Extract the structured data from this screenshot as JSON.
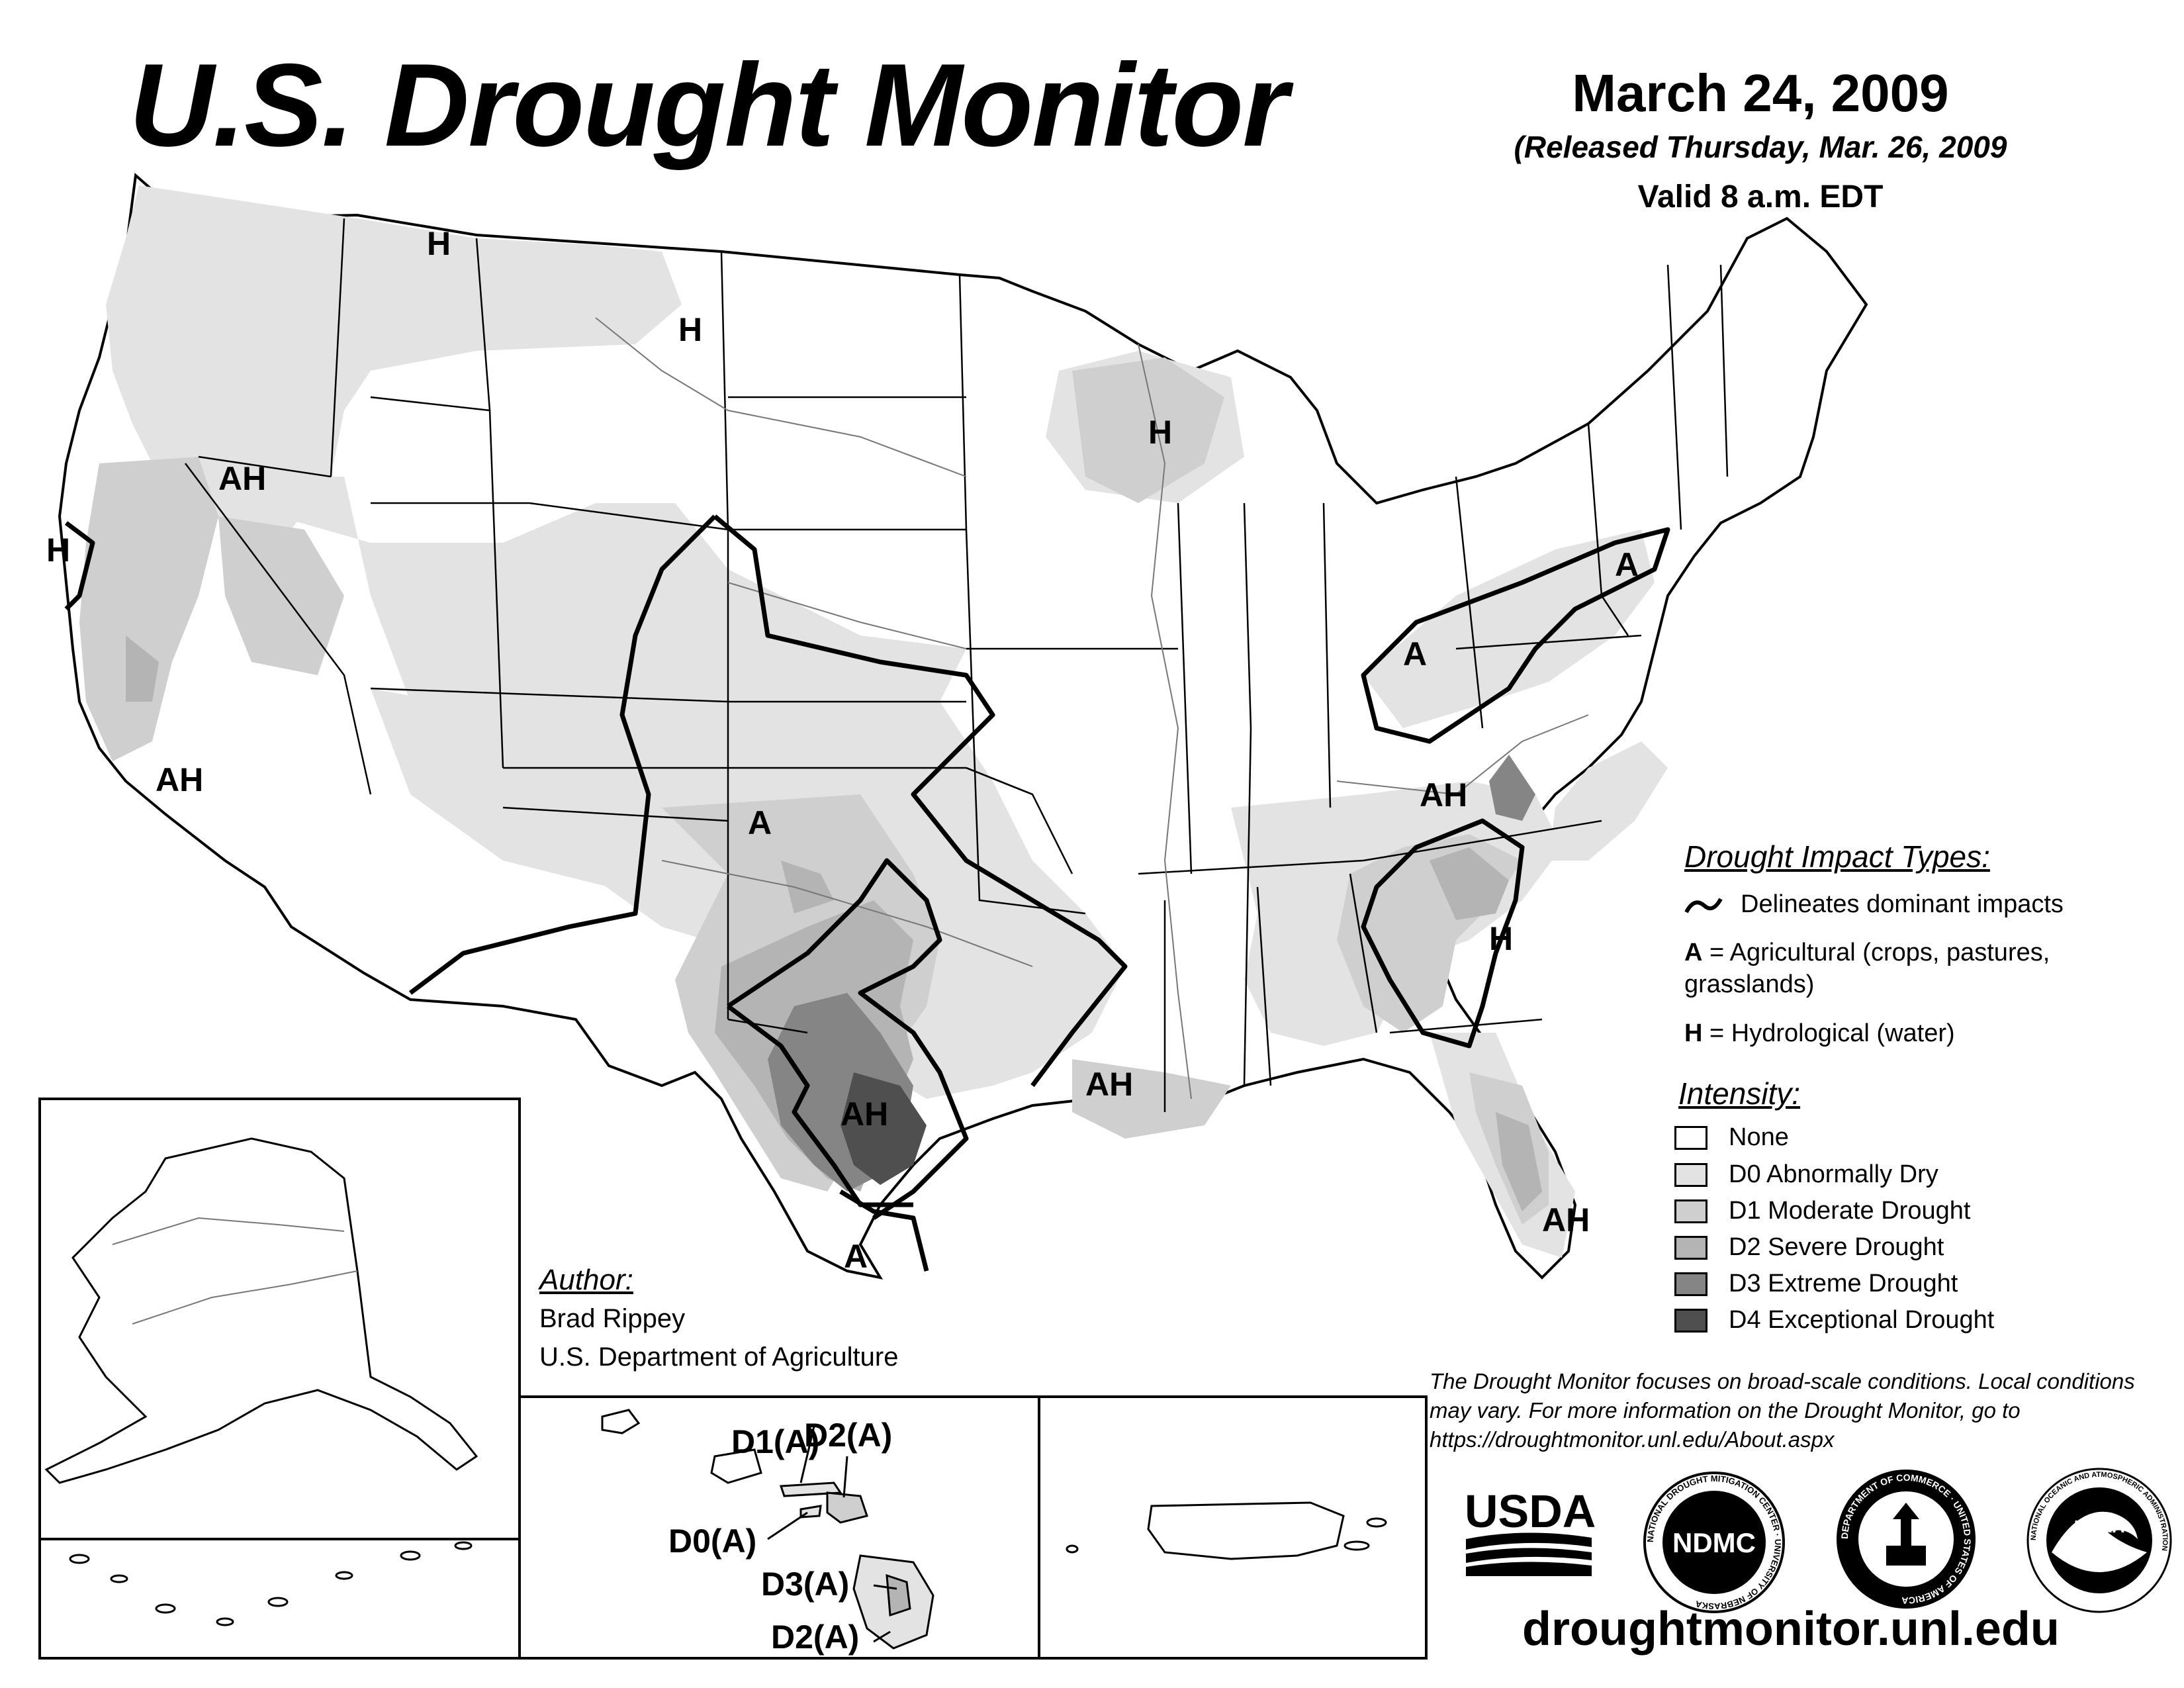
{
  "title": "U.S. Drought Monitor",
  "date": "March 24, 2009",
  "released": "(Released Thursday, Mar. 26, 2009",
  "valid": "Valid 8 a.m. EDT",
  "impact_types": {
    "heading": "Drought Impact Types:",
    "line_desc": "Delineates dominant impacts",
    "a_key": "A",
    "a_desc": " = Agricultural (crops, pastures, grasslands)",
    "h_key": "H",
    "h_desc": " = Hydrological (water)"
  },
  "intensity": {
    "heading": "Intensity:",
    "levels": [
      {
        "label": "None",
        "color": "#ffffff"
      },
      {
        "label": "D0 Abnormally Dry",
        "color": "#e3e3e3"
      },
      {
        "label": "D1 Moderate Drought",
        "color": "#cfcfcf"
      },
      {
        "label": "D2 Severe Drought",
        "color": "#b4b4b4"
      },
      {
        "label": "D3 Extreme Drought",
        "color": "#858585"
      },
      {
        "label": "D4 Exceptional Drought",
        "color": "#4f4f4f"
      }
    ]
  },
  "author": {
    "heading": "Author:",
    "name": "Brad Rippey",
    "org": "U.S. Department of Agriculture"
  },
  "note": "The Drought Monitor focuses on broad-scale conditions. Local conditions may vary. For more information on the Drought Monitor, go to https://droughtmonitor.unl.edu/About.aspx",
  "website": "droughtmonitor.unl.edu",
  "map_labels": {
    "h_pacific_nw": "H",
    "h_montana": "H",
    "h_wisconsin": "H",
    "ah_oregon": "AH",
    "h_california": "H",
    "ah_california": "AH",
    "a_pennsylvania": "A",
    "a_ohio": "A",
    "a_colorado": "A",
    "ah_tennessee": "AH",
    "h_carolina": "H",
    "ah_louisiana": "AH",
    "ah_texas": "AH",
    "a_south_texas": "A",
    "ah_florida": "AH"
  },
  "hawaii_labels": {
    "d1": "D1(A)",
    "d2_maui": "D2(A)",
    "d0": "D0(A)",
    "d3": "D3(A)",
    "d2_big": "D2(A)"
  },
  "logos": {
    "usda": "USDA",
    "ndmc": "NDMC",
    "ndmc_ring": "NATIONAL DROUGHT MITIGATION CENTER · UNIVERSITY OF NEBRASKA",
    "doc_ring": "DEPARTMENT OF COMMERCE · UNITED STATES OF AMERICA",
    "noaa": "NOAA",
    "noaa_ring": "NATIONAL OCEANIC AND ATMOSPHERIC ADMINISTRATION"
  },
  "colors": {
    "d0": "#e3e3e3",
    "d1": "#cfcfcf",
    "d2": "#b4b4b4",
    "d3": "#858585",
    "d4": "#4f4f4f",
    "ink": "#000000"
  }
}
